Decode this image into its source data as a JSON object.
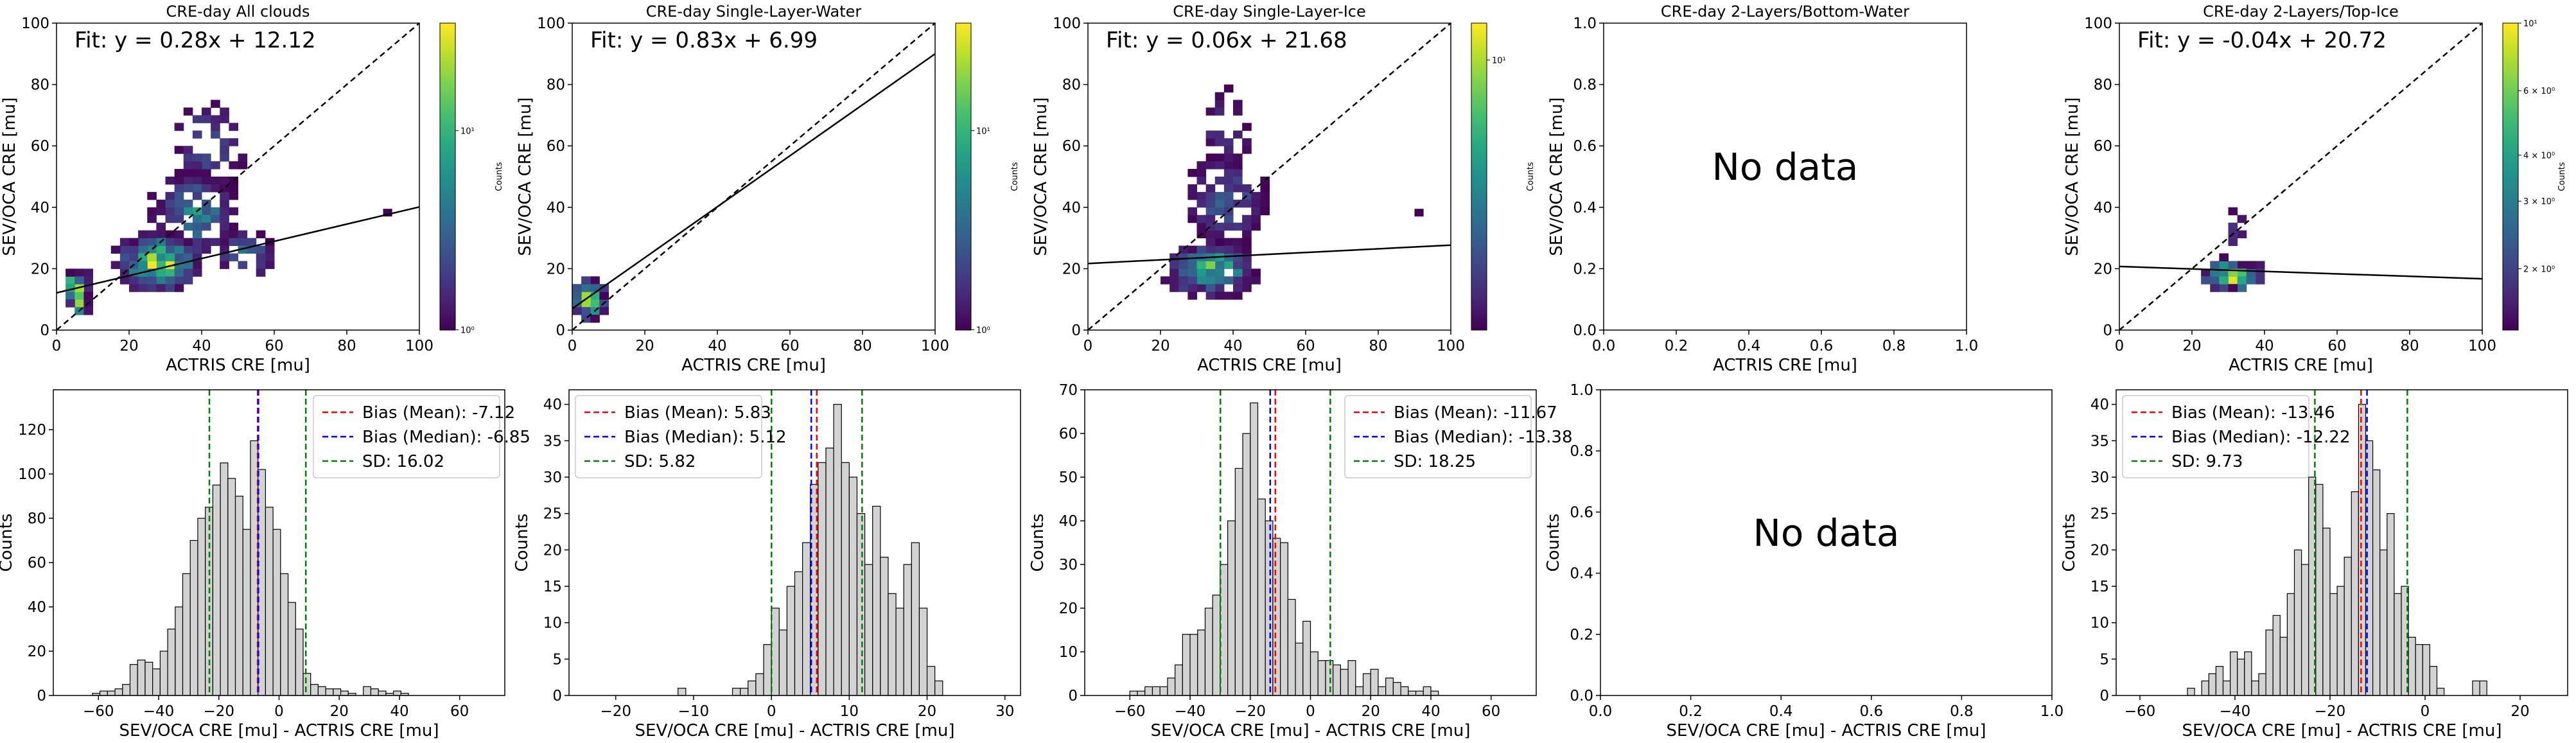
{
  "chart_data": [
    {
      "type": "heatmap",
      "panel": "scatter",
      "title": "CRE-day All clouds",
      "xlabel": "ACTRIS CRE [mu]",
      "ylabel": "SEV/OCA CRE [mu]",
      "xlim": [
        0,
        100
      ],
      "ylim": [
        0,
        100
      ],
      "xticks": [
        "0",
        "20",
        "40",
        "60",
        "80",
        "100"
      ],
      "yticks": [
        "0",
        "20",
        "40",
        "60",
        "80",
        "100"
      ],
      "fit_text": "Fit: y = 0.28x + 12.12",
      "fit": {
        "slope": 0.28,
        "intercept": 12.12
      },
      "one_to_one_line": true,
      "colorbar": {
        "label": "Counts",
        "ticks": [
          "10⁰",
          "10¹"
        ],
        "scale": "log",
        "cmap": "viridis"
      },
      "blobs": [
        {
          "cx": 28,
          "cy": 22,
          "rx": 12,
          "ry": 10,
          "n": 240,
          "dens": 1.0
        },
        {
          "cx": 38,
          "cy": 38,
          "rx": 12,
          "ry": 14,
          "n": 160,
          "dens": 0.5
        },
        {
          "cx": 6,
          "cy": 12,
          "rx": 4,
          "ry": 7,
          "n": 60,
          "dens": 1.3
        },
        {
          "cx": 42,
          "cy": 60,
          "rx": 10,
          "ry": 16,
          "n": 60,
          "dens": 0.3
        },
        {
          "cx": 52,
          "cy": 25,
          "rx": 8,
          "ry": 8,
          "n": 40,
          "dens": 0.4
        }
      ],
      "outliers": [
        [
          90,
          37
        ]
      ]
    },
    {
      "type": "heatmap",
      "panel": "scatter",
      "title": "CRE-day Single-Layer-Water",
      "xlabel": "ACTRIS CRE [mu]",
      "ylabel": "SEV/OCA CRE [mu]",
      "xlim": [
        0,
        100
      ],
      "ylim": [
        0,
        100
      ],
      "xticks": [
        "0",
        "20",
        "40",
        "60",
        "80",
        "100"
      ],
      "yticks": [
        "0",
        "20",
        "40",
        "60",
        "80",
        "100"
      ],
      "fit_text": "Fit: y = 0.83x + 6.99",
      "fit": {
        "slope": 0.83,
        "intercept": 6.99
      },
      "one_to_one_line": true,
      "colorbar": {
        "label": "Counts",
        "ticks": [
          "10⁰",
          "10¹"
        ],
        "scale": "log",
        "cmap": "viridis"
      },
      "blobs": [
        {
          "cx": 5,
          "cy": 10,
          "rx": 4,
          "ry": 7,
          "n": 140,
          "dens": 1.3
        }
      ],
      "outliers": []
    },
    {
      "type": "heatmap",
      "panel": "scatter",
      "title": "CRE-day Single-Layer-Ice",
      "xlabel": "ACTRIS CRE [mu]",
      "ylabel": "SEV/OCA CRE [mu]",
      "xlim": [
        0,
        100
      ],
      "ylim": [
        0,
        100
      ],
      "xticks": [
        "0",
        "20",
        "40",
        "60",
        "80",
        "100"
      ],
      "yticks": [
        "0",
        "20",
        "40",
        "60",
        "80",
        "100"
      ],
      "fit_text": "Fit: y = 0.06x + 21.68",
      "fit": {
        "slope": 0.06,
        "intercept": 21.68
      },
      "one_to_one_line": true,
      "colorbar": {
        "label": "Counts",
        "ticks": [
          "10¹"
        ],
        "scale": "log",
        "cmap": "viridis"
      },
      "blobs": [
        {
          "cx": 34,
          "cy": 20,
          "rx": 13,
          "ry": 9,
          "n": 220,
          "dens": 0.8
        },
        {
          "cx": 38,
          "cy": 42,
          "rx": 11,
          "ry": 15,
          "n": 110,
          "dens": 0.35
        },
        {
          "cx": 38,
          "cy": 65,
          "rx": 7,
          "ry": 14,
          "n": 30,
          "dens": 0.2
        }
      ],
      "outliers": [
        [
          90,
          37
        ]
      ]
    },
    {
      "type": "scatter",
      "panel": "empty",
      "title": "CRE-day 2-Layers/Bottom-Water",
      "xlabel": "ACTRIS CRE [mu]",
      "ylabel": "SEV/OCA CRE [mu]",
      "xlim": [
        0.0,
        1.0
      ],
      "ylim": [
        0.0,
        1.0
      ],
      "xticks": [
        "0.0",
        "0.2",
        "0.4",
        "0.6",
        "0.8",
        "1.0"
      ],
      "yticks": [
        "0.0",
        "0.2",
        "0.4",
        "0.6",
        "0.8",
        "1.0"
      ],
      "message": "No data"
    },
    {
      "type": "heatmap",
      "panel": "scatter",
      "title": "CRE-day 2-Layers/Top-Ice",
      "xlabel": "ACTRIS CRE [mu]",
      "ylabel": "SEV/OCA CRE [mu]",
      "xlim": [
        0,
        100
      ],
      "ylim": [
        0,
        100
      ],
      "xticks": [
        "0",
        "20",
        "40",
        "60",
        "80",
        "100"
      ],
      "yticks": [
        "0",
        "20",
        "40",
        "60",
        "80",
        "100"
      ],
      "fit_text": "Fit: y = -0.04x + 20.72",
      "fit": {
        "slope": -0.04,
        "intercept": 20.72
      },
      "one_to_one_line": true,
      "colorbar": {
        "label": "Counts",
        "ticks": [
          "2 × 10⁰",
          "3 × 10⁰",
          "4 × 10⁰",
          "6 × 10⁰",
          "10¹"
        ],
        "scale": "log",
        "cmap": "viridis"
      },
      "blobs": [
        {
          "cx": 31,
          "cy": 18,
          "rx": 8,
          "ry": 5,
          "n": 130,
          "dens": 1.2
        },
        {
          "cx": 32,
          "cy": 33,
          "rx": 3,
          "ry": 6,
          "n": 8,
          "dens": 0.2
        }
      ],
      "outliers": []
    },
    {
      "type": "bar",
      "panel": "hist",
      "xlabel": "SEV/OCA CRE [mu] - ACTRIS CRE [mu]",
      "ylabel": "Counts",
      "xlim": [
        -75,
        75
      ],
      "ylim": [
        0,
        138
      ],
      "xticks": [
        "−60",
        "−40",
        "−20",
        "0",
        "20",
        "40",
        "60"
      ],
      "yticks": [
        "0",
        "20",
        "40",
        "60",
        "80",
        "100",
        "120"
      ],
      "bin_start": -62,
      "bin_width": 2.5,
      "counts": [
        1,
        2,
        2,
        3,
        5,
        14,
        16,
        15,
        12,
        20,
        30,
        40,
        55,
        70,
        80,
        85,
        95,
        105,
        98,
        90,
        75,
        115,
        102,
        85,
        75,
        55,
        42,
        30,
        10,
        5,
        4,
        3,
        3,
        2,
        1,
        0,
        4,
        3,
        2,
        1,
        2,
        1
      ],
      "lines": [
        {
          "name": "Bias (Mean): -7.12",
          "x": -7.12,
          "color": "#ff0000"
        },
        {
          "name": "Bias (Median): -6.85",
          "x": -6.85,
          "color": "#0000ff"
        },
        {
          "name": "SD: 16.02",
          "x": -23.14,
          "x2": 8.9,
          "color": "#008000"
        }
      ],
      "legend": "upper right"
    },
    {
      "type": "bar",
      "panel": "hist",
      "xlabel": "SEV/OCA CRE [mu] - ACTRIS CRE [mu]",
      "ylabel": "Counts",
      "xlim": [
        -26,
        32
      ],
      "ylim": [
        0,
        42
      ],
      "xticks": [
        "−20",
        "−10",
        "0",
        "10",
        "20",
        "30"
      ],
      "yticks": [
        "0",
        "5",
        "10",
        "15",
        "20",
        "25",
        "30",
        "35",
        "40"
      ],
      "bin_start": -12,
      "bin_width": 1,
      "counts": [
        1,
        0,
        0,
        0,
        0,
        0,
        0,
        1,
        1,
        2,
        3,
        7,
        12,
        9,
        15,
        17,
        21,
        29,
        32,
        34,
        40,
        32,
        30,
        25,
        18,
        26,
        19,
        14,
        12,
        18,
        21,
        12,
        4,
        2
      ],
      "lines": [
        {
          "name": "Bias (Mean): 5.83",
          "x": 5.83,
          "color": "#ff0000"
        },
        {
          "name": "Bias (Median): 5.12",
          "x": 5.12,
          "color": "#0000ff"
        },
        {
          "name": "SD: 5.82",
          "x": 0.01,
          "x2": 11.65,
          "color": "#008000"
        }
      ],
      "legend": "upper left"
    },
    {
      "type": "bar",
      "panel": "hist",
      "xlabel": "SEV/OCA CRE [mu] - ACTRIS CRE [mu]",
      "ylabel": "Counts",
      "xlim": [
        -75,
        75
      ],
      "ylim": [
        0,
        70
      ],
      "xticks": [
        "−60",
        "−40",
        "−20",
        "0",
        "20",
        "40",
        "60"
      ],
      "yticks": [
        "0",
        "10",
        "20",
        "30",
        "40",
        "50",
        "60",
        "70"
      ],
      "bin_start": -60,
      "bin_width": 2.5,
      "counts": [
        1,
        1,
        2,
        2,
        2,
        4,
        7,
        14,
        14,
        15,
        20,
        23,
        30,
        40,
        52,
        60,
        67,
        45,
        40,
        36,
        35,
        22,
        12,
        17,
        10,
        8,
        8,
        7,
        6,
        8,
        2,
        5,
        6,
        2,
        4,
        3,
        2,
        1,
        1,
        2,
        1
      ],
      "lines": [
        {
          "name": "Bias (Mean): -11.67",
          "x": -11.67,
          "color": "#ff0000"
        },
        {
          "name": "Bias (Median): -13.38",
          "x": -13.38,
          "color": "#0000ff"
        },
        {
          "name": "SD: 18.25",
          "x": -29.92,
          "x2": 6.58,
          "color": "#008000"
        }
      ],
      "legend": "upper right"
    },
    {
      "type": "bar",
      "panel": "empty",
      "xlabel": "SEV/OCA CRE [mu] - ACTRIS CRE [mu]",
      "ylabel": "Counts",
      "xlim": [
        0.0,
        1.0
      ],
      "ylim": [
        0.0,
        1.0
      ],
      "xticks": [
        "0.0",
        "0.2",
        "0.4",
        "0.6",
        "0.8",
        "1.0"
      ],
      "yticks": [
        "0.0",
        "0.2",
        "0.4",
        "0.6",
        "0.8",
        "1.0"
      ],
      "message": "No data"
    },
    {
      "type": "bar",
      "panel": "hist",
      "xlabel": "SEV/OCA CRE [mu] - ACTRIS CRE [mu]",
      "ylabel": "Counts",
      "xlim": [
        -65,
        30
      ],
      "ylim": [
        0,
        42
      ],
      "xticks": [
        "−60",
        "−40",
        "−20",
        "0",
        "20"
      ],
      "yticks": [
        "0",
        "5",
        "10",
        "15",
        "20",
        "25",
        "30",
        "35",
        "40"
      ],
      "bin_start": -50,
      "bin_width": 1.5,
      "counts": [
        1,
        0,
        2,
        3,
        4,
        2,
        6,
        5,
        6,
        2,
        3,
        9,
        11,
        8,
        14,
        20,
        18,
        30,
        29,
        23,
        14,
        15,
        19,
        28,
        40,
        35,
        31,
        20,
        25,
        14,
        15,
        8,
        7,
        7,
        4,
        1,
        0,
        0,
        0,
        0,
        2,
        2
      ],
      "lines": [
        {
          "name": "Bias (Mean): -13.46",
          "x": -13.46,
          "color": "#ff0000"
        },
        {
          "name": "Bias (Median): -12.22",
          "x": -12.22,
          "color": "#0000ff"
        },
        {
          "name": "SD: 9.73",
          "x": -23.19,
          "x2": -3.73,
          "color": "#008000"
        }
      ],
      "legend": "upper left"
    }
  ]
}
